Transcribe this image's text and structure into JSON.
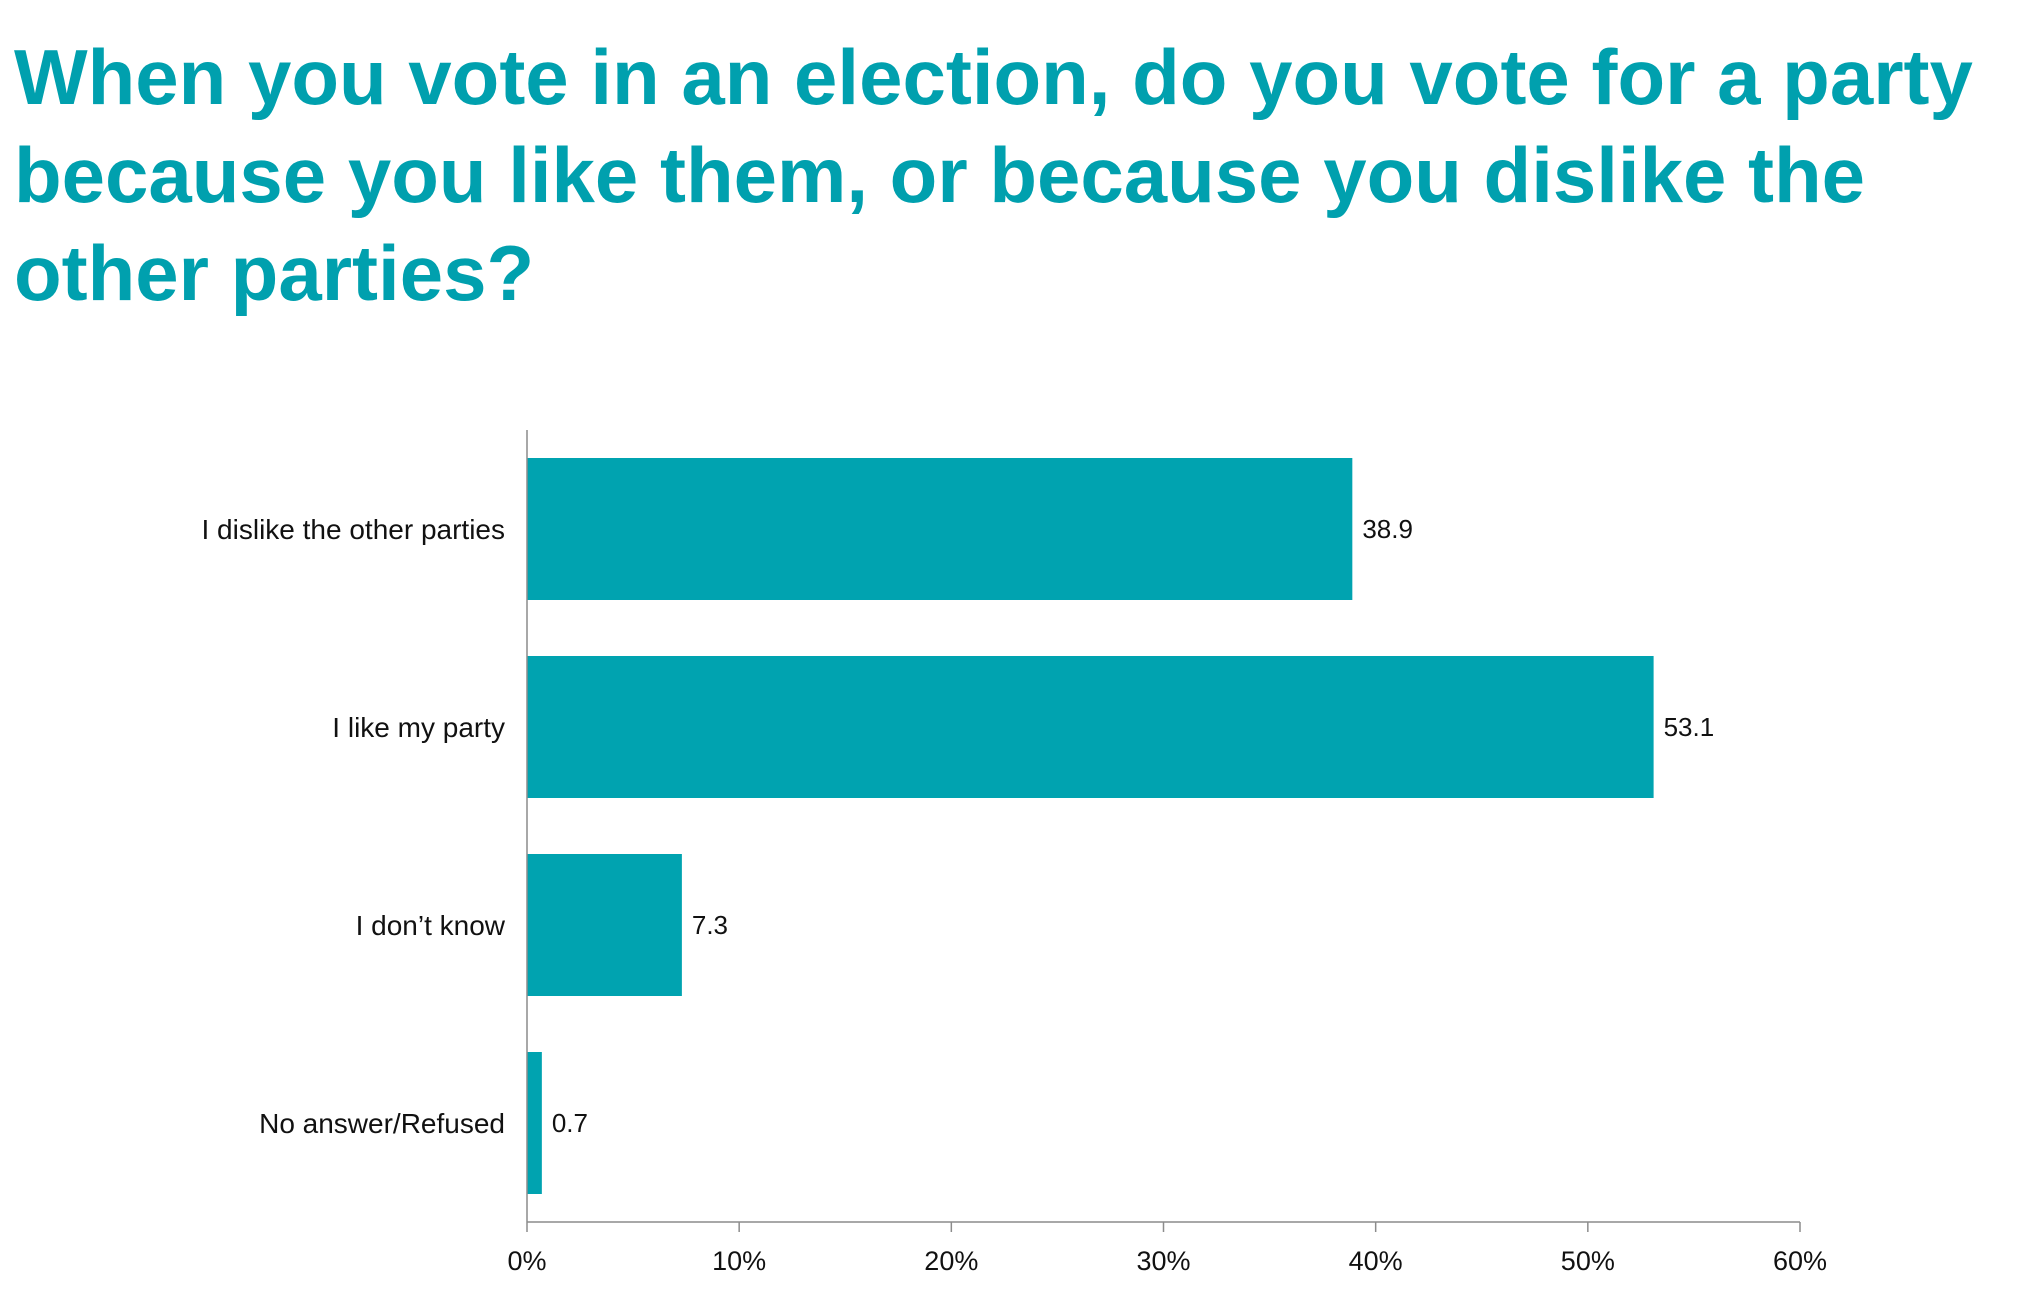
{
  "chart_data": {
    "type": "bar",
    "orientation": "horizontal",
    "title": "When you vote in an election, do you vote for a party because you like them, or because you dislike the other parties?",
    "categories": [
      "I dislike the other parties",
      "I like my party",
      "I don’t know",
      "No answer/Refused"
    ],
    "values": [
      38.9,
      53.1,
      7.3,
      0.7
    ],
    "value_labels": [
      "38.9",
      "53.1",
      "7.3",
      "0.7"
    ],
    "xlim": [
      0,
      60
    ],
    "x_ticks": [
      0,
      10,
      20,
      30,
      40,
      50,
      60
    ],
    "x_tick_labels": [
      "0%",
      "10%",
      "20%",
      "30%",
      "40%",
      "50%",
      "60%"
    ],
    "xlabel": "",
    "ylabel": "",
    "grid": false,
    "legend": "none",
    "colors": {
      "bar": "#00a3b0",
      "title": "#00a0ae",
      "axis": "#8c8c8c",
      "text": "#111111"
    }
  }
}
